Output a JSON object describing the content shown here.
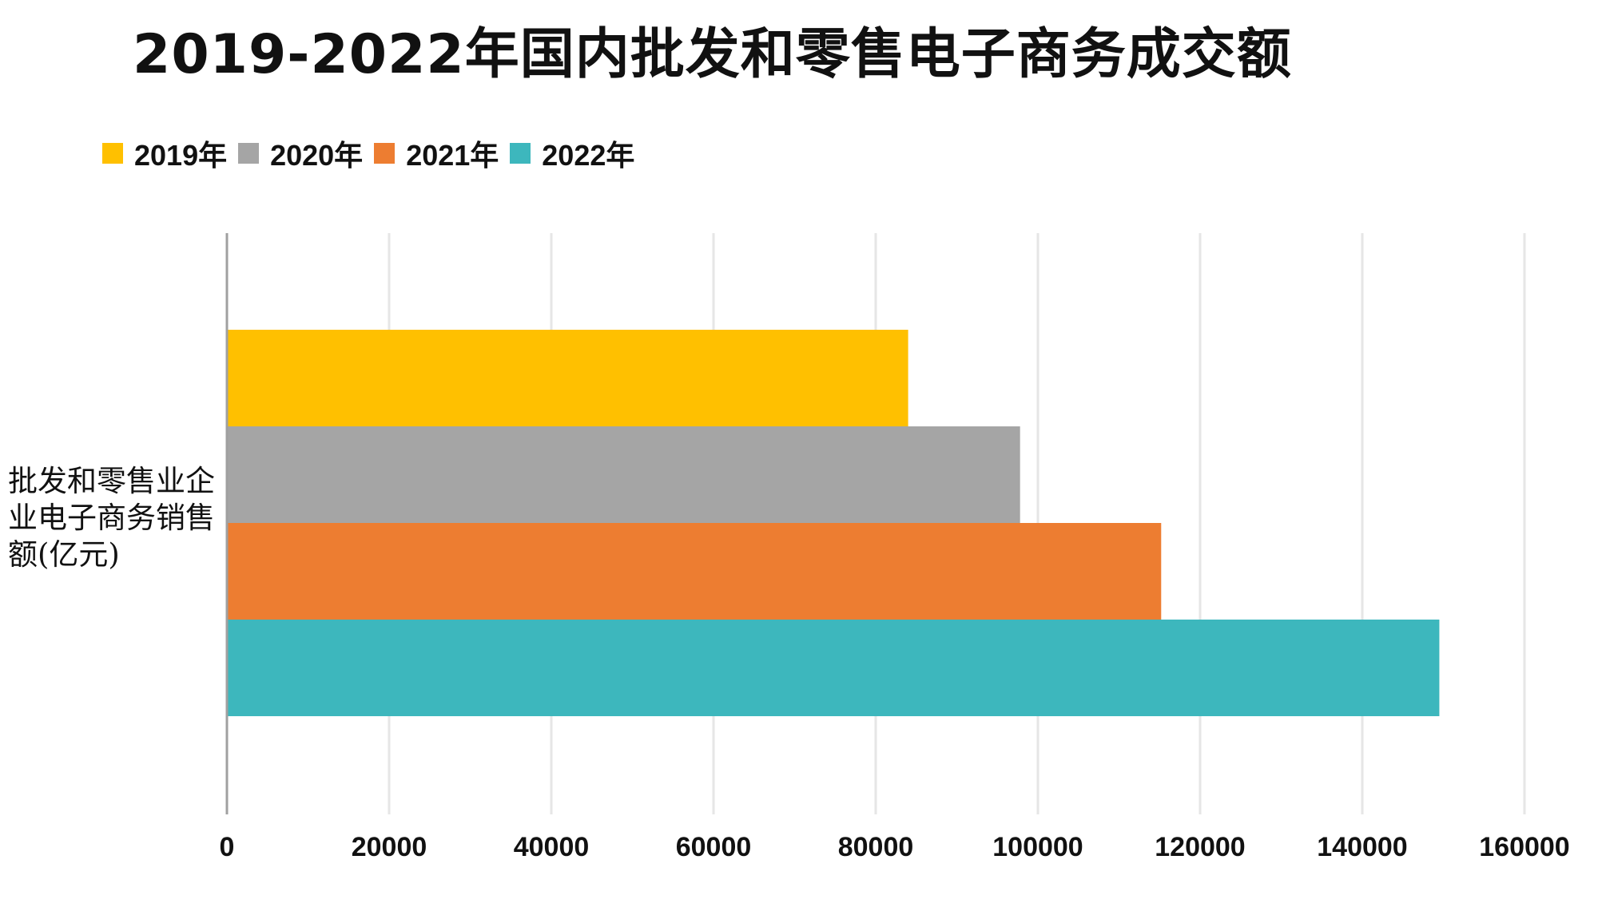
{
  "chart_data": {
    "type": "bar",
    "orientation": "horizontal",
    "title": "2019-2022年国内批发和零售电子商务成交额",
    "categories": [
      "批发和零售业企业电子商务销售额(亿元)"
    ],
    "series": [
      {
        "name": "2019年",
        "values": [
          84000
        ],
        "color": "#FFC000"
      },
      {
        "name": "2020年",
        "values": [
          97800
        ],
        "color": "#A5A5A5"
      },
      {
        "name": "2021年",
        "values": [
          115200
        ],
        "color": "#ED7D31"
      },
      {
        "name": "2022年",
        "values": [
          149500
        ],
        "color": "#3DB7BD"
      }
    ],
    "xlim": [
      0,
      160000
    ],
    "xticks": [
      "0",
      "20000",
      "40000",
      "60000",
      "80000",
      "100000",
      "120000",
      "140000",
      "160000"
    ],
    "xlabel": "",
    "ylabel": "",
    "grid": true,
    "legend_position": "top-left"
  }
}
